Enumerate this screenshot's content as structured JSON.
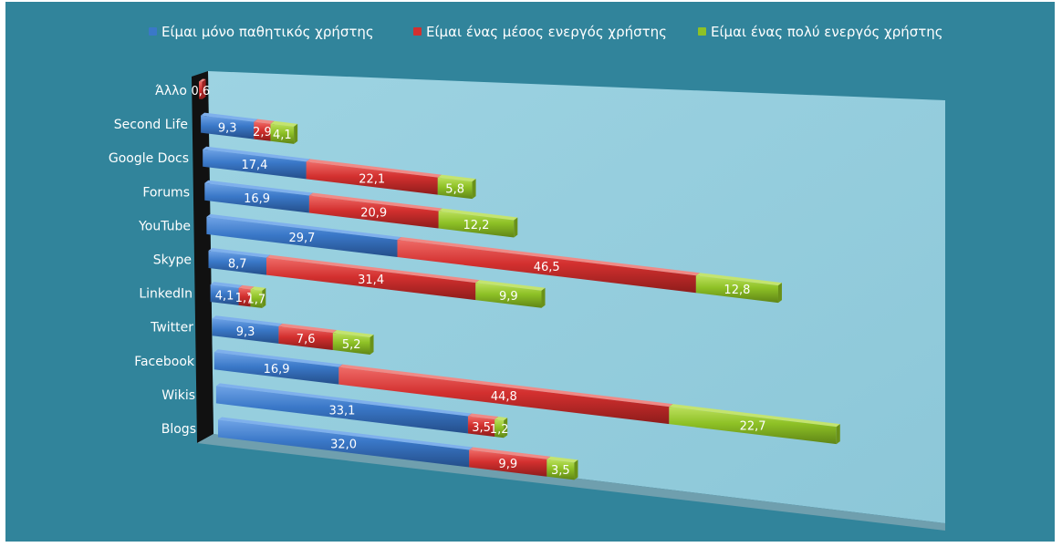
{
  "chart_data": {
    "type": "bar",
    "orientation": "horizontal",
    "stacked": true,
    "style": "3d",
    "categories": [
      "Άλλο",
      "Second Life",
      "Google Docs",
      "Forums",
      "YouTube",
      "Skype",
      "LinkedIn",
      "Twitter",
      "Facebook",
      "Wikis",
      "Blogs"
    ],
    "series": [
      {
        "name": "Είμαι μόνο παθητικός χρήστης",
        "color": "#3a78c8",
        "values": [
          0,
          9.3,
          17.4,
          16.9,
          29.7,
          8.7,
          4.1,
          9.3,
          16.9,
          33.1,
          32.0
        ],
        "labels": [
          "",
          "9,3",
          "17,4",
          "16,9",
          "29,7",
          "8,7",
          "4,1",
          "9,3",
          "16,9",
          "33,1",
          "32,0"
        ]
      },
      {
        "name": "Είμαι ένας μέσος ενεργός χρήστης",
        "color": "#d3302f",
        "values": [
          0.6,
          2.9,
          22.1,
          20.9,
          46.5,
          31.4,
          1.7,
          7.6,
          44.8,
          3.5,
          9.9
        ],
        "labels": [
          "0,6",
          "2,9",
          "22,1",
          "20,9",
          "46,5",
          "31,4",
          "1,7",
          "7,6",
          "44,8",
          "3,5",
          "9,9"
        ]
      },
      {
        "name": "Είμαι ένας πολύ ενεργός χρήστης",
        "color": "#8ec126",
        "values": [
          0,
          4.1,
          5.8,
          12.2,
          12.8,
          9.9,
          1.7,
          5.2,
          22.7,
          1.2,
          3.5
        ],
        "labels": [
          "",
          "4,1",
          "5,8",
          "12,2",
          "12,8",
          "9,9",
          "1,7",
          "5,2",
          "22,7",
          "1,2",
          "3,5"
        ]
      }
    ],
    "legend_position": "top",
    "grid": false,
    "background_color": "#31849b",
    "wall_color": "#93cddd"
  }
}
